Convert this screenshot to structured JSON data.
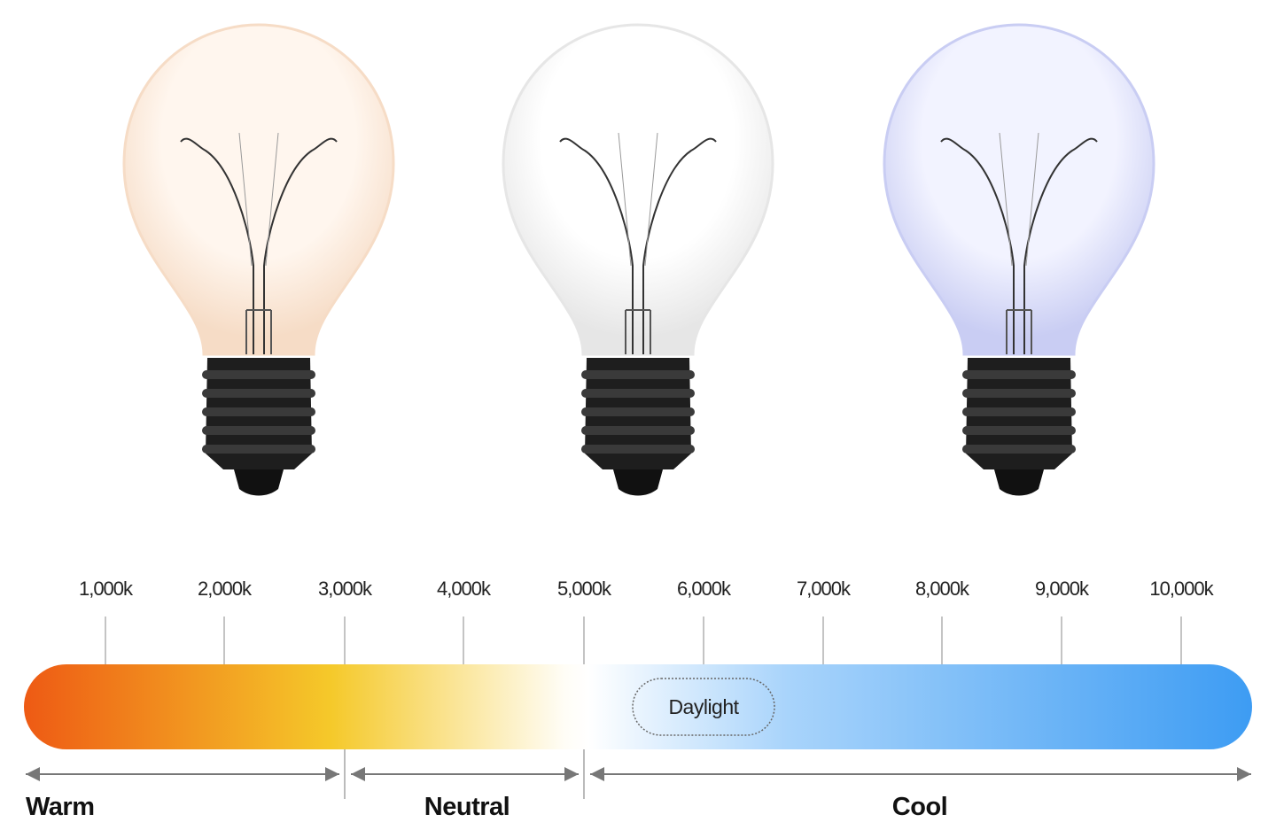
{
  "bulbs": [
    {
      "name": "warm",
      "tint": "#f6dcc6",
      "glow": "#fff6ee"
    },
    {
      "name": "neutral",
      "tint": "#e6e6e6",
      "glow": "#ffffff"
    },
    {
      "name": "cool",
      "tint": "#c9cdf3",
      "glow": "#f2f3ff"
    }
  ],
  "scale": {
    "ticks": [
      "1,000k",
      "2,000k",
      "3,000k",
      "4,000k",
      "5,000k",
      "6,000k",
      "7,000k",
      "8,000k",
      "9,000k",
      "10,000k"
    ],
    "gradient_colors": [
      "#ee5a14",
      "#f5c92a",
      "#fffdf6",
      "#ffffff",
      "#a9d4fb",
      "#3d9cf3"
    ],
    "daylight_label": "Daylight"
  },
  "zones": [
    {
      "label": "Warm"
    },
    {
      "label": "Neutral"
    },
    {
      "label": "Cool"
    }
  ]
}
